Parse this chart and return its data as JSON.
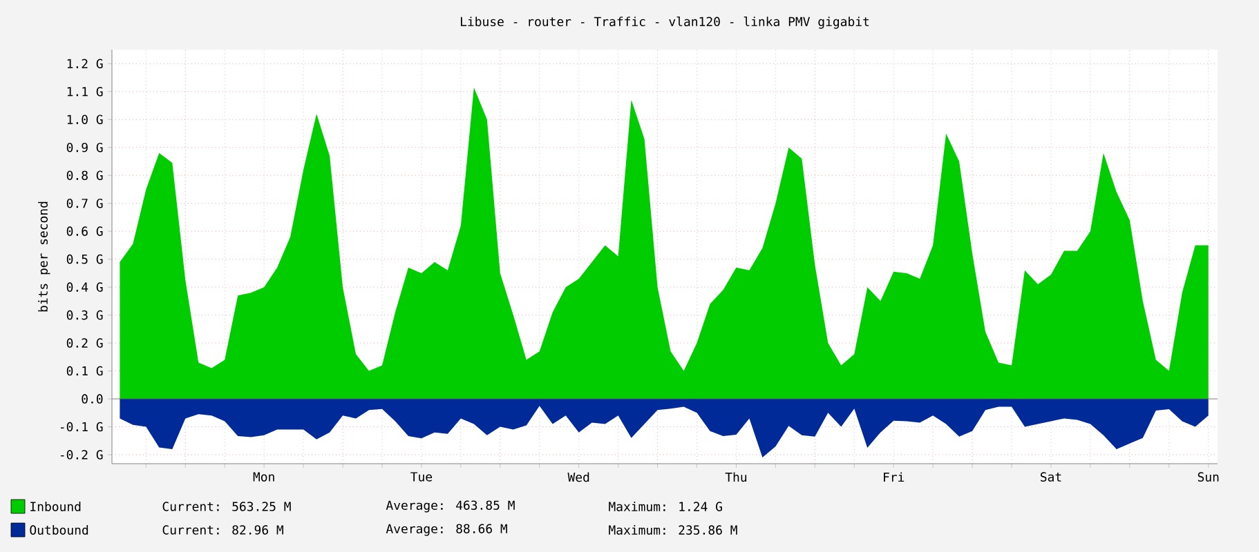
{
  "chart_data": {
    "type": "area",
    "title": "Libuse - router - Traffic - vlan120 - linka PMV gigabit",
    "ylabel": "bits per second",
    "categories": [
      null,
      null,
      null,
      null,
      null,
      null,
      null,
      null,
      null,
      null,
      null,
      "Mon",
      null,
      null,
      null,
      null,
      null,
      null,
      null,
      null,
      null,
      null,
      null,
      "Tue",
      null,
      null,
      null,
      null,
      null,
      null,
      null,
      null,
      null,
      null,
      null,
      "Wed",
      null,
      null,
      null,
      null,
      null,
      null,
      null,
      null,
      null,
      null,
      null,
      "Thu",
      null,
      null,
      null,
      null,
      null,
      null,
      null,
      null,
      null,
      null,
      null,
      "Fri",
      null,
      null,
      null,
      null,
      null,
      null,
      null,
      null,
      null,
      null,
      null,
      "Sat",
      null,
      null,
      null,
      null,
      null,
      null,
      null,
      null,
      null,
      null,
      null,
      "Sun"
    ],
    "ylim": [
      -0.232,
      1.25
    ],
    "yticks": [
      {
        "value": -0.2,
        "label": "-0.2 G"
      },
      {
        "value": -0.1,
        "label": "-0.1 G"
      },
      {
        "value": 0,
        "label": "0.0"
      },
      {
        "value": 0.1,
        "label": "0.1 G"
      },
      {
        "value": 0.2,
        "label": "0.2 G"
      },
      {
        "value": 0.3,
        "label": "0.3 G"
      },
      {
        "value": 0.4,
        "label": "0.4 G"
      },
      {
        "value": 0.5,
        "label": "0.5 G"
      },
      {
        "value": 0.6,
        "label": "0.6 G"
      },
      {
        "value": 0.7,
        "label": "0.7 G"
      },
      {
        "value": 0.8,
        "label": "0.8 G"
      },
      {
        "value": 0.9,
        "label": "0.9 G"
      },
      {
        "value": 1.0,
        "label": "1.0 G"
      },
      {
        "value": 1.1,
        "label": "1.1 G"
      },
      {
        "value": 1.2,
        "label": "1.2 G"
      }
    ],
    "grid": true,
    "legend": "bottom",
    "series": [
      {
        "name": "Inbound",
        "color": "#00cc00",
        "values": [
          0.49,
          0.555,
          0.75,
          0.88,
          0.845,
          0.425,
          0.13,
          0.11,
          0.14,
          0.37,
          0.38,
          0.4,
          0.47,
          0.58,
          0.82,
          1.02,
          0.87,
          0.4,
          0.16,
          0.1,
          0.12,
          0.31,
          0.47,
          0.45,
          0.49,
          0.46,
          0.62,
          1.115,
          1.0,
          0.45,
          0.3,
          0.14,
          0.17,
          0.31,
          0.4,
          0.43,
          0.49,
          0.55,
          0.51,
          1.07,
          0.93,
          0.4,
          0.17,
          0.1,
          0.2,
          0.34,
          0.39,
          0.47,
          0.46,
          0.54,
          0.7,
          0.9,
          0.86,
          0.48,
          0.2,
          0.12,
          0.16,
          0.4,
          0.35,
          0.455,
          0.45,
          0.43,
          0.55,
          0.95,
          0.85,
          0.52,
          0.24,
          0.13,
          0.12,
          0.46,
          0.41,
          0.445,
          0.53,
          0.53,
          0.6,
          0.88,
          0.74,
          0.64,
          0.35,
          0.14,
          0.1,
          0.38,
          0.55,
          0.55
        ]
      },
      {
        "name": "Outbound",
        "color": "#002a97",
        "values": [
          -0.07,
          -0.093,
          -0.1,
          -0.174,
          -0.18,
          -0.07,
          -0.055,
          -0.06,
          -0.08,
          -0.133,
          -0.137,
          -0.13,
          -0.11,
          -0.11,
          -0.11,
          -0.145,
          -0.12,
          -0.06,
          -0.07,
          -0.04,
          -0.036,
          -0.08,
          -0.133,
          -0.141,
          -0.12,
          -0.125,
          -0.07,
          -0.09,
          -0.13,
          -0.1,
          -0.11,
          -0.095,
          -0.025,
          -0.09,
          -0.06,
          -0.12,
          -0.085,
          -0.09,
          -0.06,
          -0.14,
          -0.09,
          -0.04,
          -0.035,
          -0.028,
          -0.05,
          -0.115,
          -0.133,
          -0.128,
          -0.07,
          -0.21,
          -0.17,
          -0.097,
          -0.13,
          -0.135,
          -0.05,
          -0.1,
          -0.035,
          -0.175,
          -0.12,
          -0.078,
          -0.08,
          -0.085,
          -0.06,
          -0.09,
          -0.135,
          -0.115,
          -0.04,
          -0.028,
          -0.028,
          -0.1,
          -0.09,
          -0.08,
          -0.07,
          -0.075,
          -0.09,
          -0.13,
          -0.18,
          -0.16,
          -0.14,
          -0.042,
          -0.037,
          -0.08,
          -0.1,
          -0.06
        ]
      }
    ],
    "annotations": [
      "Current:  563.25 M",
      "Average:  463.85 M",
      "Maximum:    1.24 G",
      "Current:   82.96 M",
      "Average:   88.66 M",
      "Maximum:  235.86 M"
    ]
  }
}
